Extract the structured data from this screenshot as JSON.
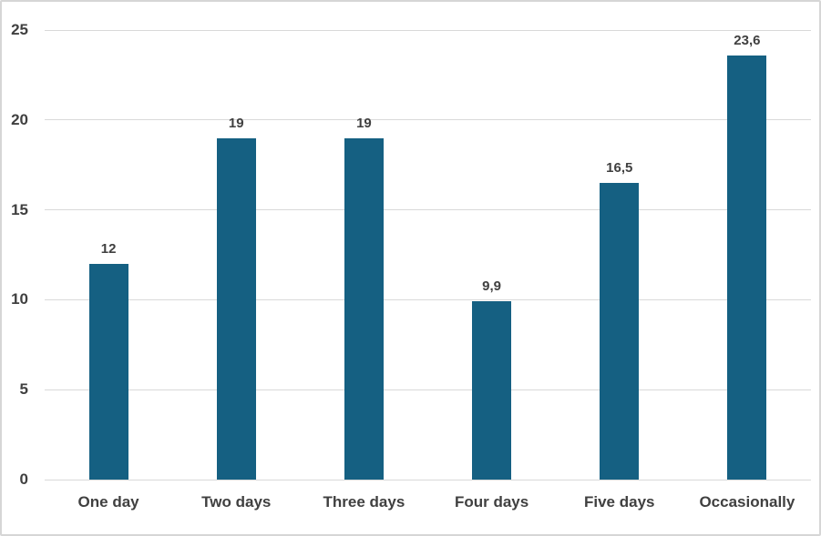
{
  "chart_data": {
    "type": "bar",
    "categories": [
      "One day",
      "Two days",
      "Three days",
      "Four days",
      "Five days",
      "Occasionally"
    ],
    "values": [
      12,
      19,
      19,
      9.9,
      16.5,
      23.6
    ],
    "value_labels": [
      "12",
      "19",
      "19",
      "9,9",
      "16,5",
      "23,6"
    ],
    "title": "",
    "xlabel": "",
    "ylabel": "",
    "ylim": [
      0,
      25
    ],
    "yticks": [
      0,
      5,
      10,
      15,
      20,
      25
    ],
    "ytick_labels": [
      "0",
      "5",
      "10",
      "15",
      "20",
      "25"
    ],
    "grid": true,
    "legend_position": "none",
    "bar_color": "#156082",
    "gridline_color": "#d9d9d9",
    "axis_label_color": "#404040",
    "value_label_color": "#404040",
    "chart_border_color": "#d6d6d6",
    "background_color": "#ffffff"
  }
}
